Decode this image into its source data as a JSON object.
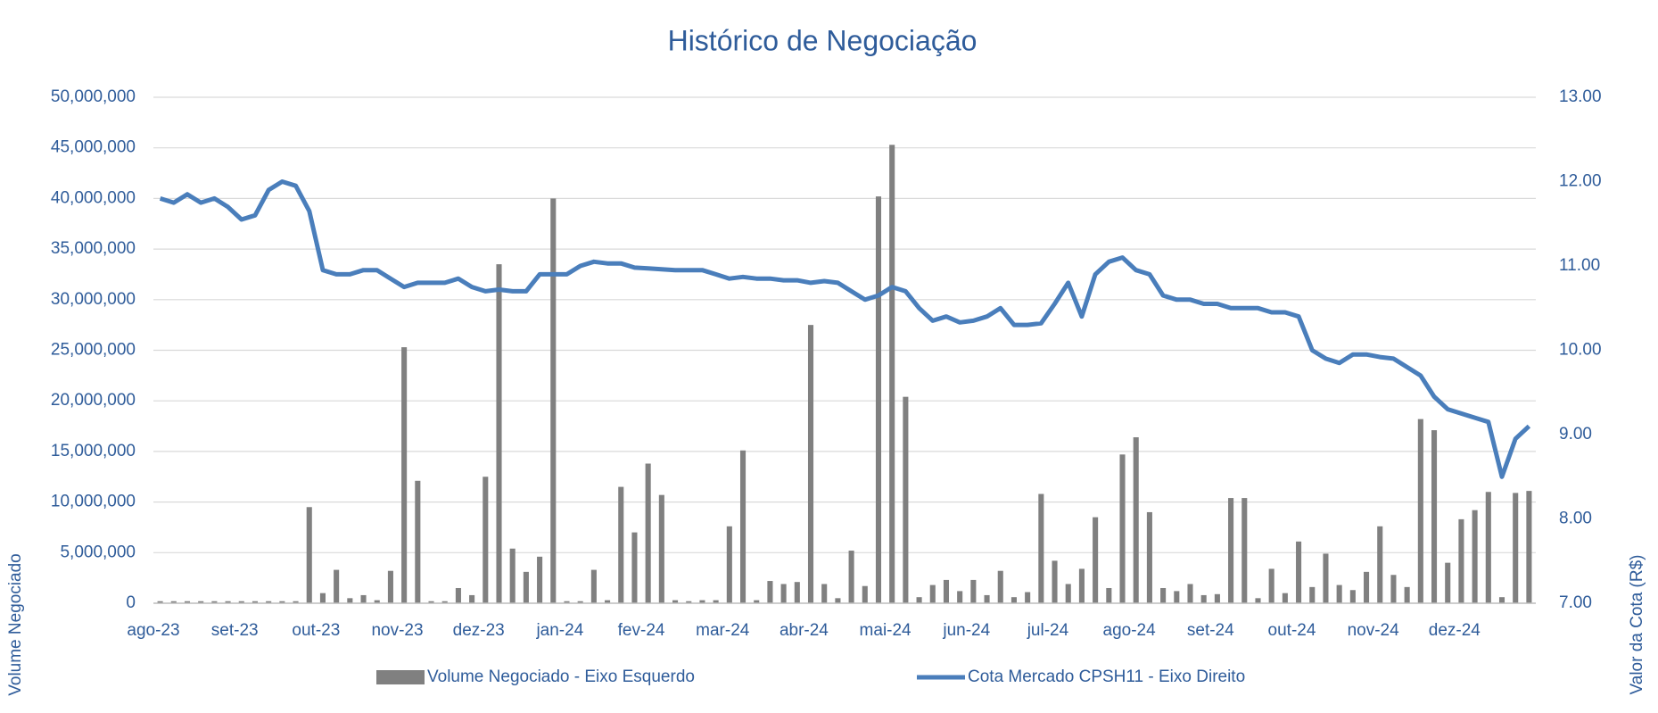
{
  "chart_data": {
    "type": "bar-line",
    "title": "Histórico de Negociação",
    "y_label": "Volume Negociado",
    "y2_label": "Valor da Cota (R$)",
    "categories": [
      "ago-23",
      null,
      null,
      null,
      null,
      null,
      "set-23",
      null,
      null,
      null,
      null,
      null,
      "out-23",
      null,
      null,
      null,
      null,
      null,
      "nov-23",
      null,
      null,
      null,
      null,
      null,
      "dez-23",
      null,
      null,
      null,
      null,
      null,
      "jan-24",
      null,
      null,
      null,
      null,
      null,
      "fev-24",
      null,
      null,
      null,
      null,
      null,
      "mar-24",
      null,
      null,
      null,
      null,
      null,
      "abr-24",
      null,
      null,
      null,
      null,
      null,
      "mai-24",
      null,
      null,
      null,
      null,
      null,
      "jun-24",
      null,
      null,
      null,
      null,
      null,
      "jul-24",
      null,
      null,
      null,
      null,
      null,
      "ago-24",
      null,
      null,
      null,
      null,
      null,
      "set-24",
      null,
      null,
      null,
      null,
      null,
      "out-24",
      null,
      null,
      null,
      null,
      null,
      "nov-24",
      null,
      null,
      null,
      null,
      null,
      "dez-24",
      null,
      null,
      null,
      null,
      null
    ],
    "series": [
      {
        "name": "Volume Negociado - Eixo Esquerdo",
        "type": "bar",
        "color": "#808080",
        "values": [
          200000,
          200000,
          200000,
          200000,
          200000,
          200000,
          200000,
          200000,
          200000,
          200000,
          200000,
          9500000,
          1000000,
          3300000,
          500000,
          800000,
          300000,
          3200000,
          25300000,
          12100000,
          200000,
          200000,
          1500000,
          800000,
          12500000,
          33500000,
          5400000,
          3100000,
          4600000,
          40000000,
          200000,
          200000,
          3300000,
          300000,
          11500000,
          7000000,
          13800000,
          10700000,
          300000,
          200000,
          300000,
          300000,
          7600000,
          15100000,
          300000,
          2200000,
          1900000,
          2100000,
          27500000,
          1900000,
          500000,
          5200000,
          1700000,
          40200000,
          45300000,
          20400000,
          600000,
          1800000,
          2300000,
          1200000,
          2300000,
          800000,
          3200000,
          600000,
          1100000,
          10800000,
          4200000,
          1900000,
          3400000,
          8500000,
          1500000,
          14700000,
          16400000,
          9000000,
          1500000,
          1200000,
          1900000,
          800000,
          900000,
          10400000,
          10400000,
          500000,
          3400000,
          1000000,
          6100000,
          1600000,
          4900000,
          1800000,
          1300000,
          3100000,
          7600000,
          2800000,
          1600000,
          18200000,
          17100000,
          4000000,
          8300000,
          9200000,
          11000000,
          600000,
          10900000,
          11100000
        ]
      },
      {
        "name": "Cota Mercado CPSH11 - Eixo Direito",
        "type": "line",
        "axis": "y2",
        "color": "#4a7ebb",
        "values": [
          11.8,
          11.75,
          11.85,
          11.75,
          11.8,
          11.7,
          11.55,
          11.6,
          11.9,
          12.0,
          11.95,
          11.65,
          10.95,
          10.9,
          10.9,
          10.95,
          10.95,
          10.85,
          10.75,
          10.8,
          10.8,
          10.8,
          10.85,
          10.75,
          10.7,
          10.72,
          10.7,
          10.7,
          10.9,
          10.9,
          10.9,
          11.0,
          11.05,
          11.03,
          11.03,
          10.98,
          10.97,
          10.96,
          10.95,
          10.95,
          10.95,
          10.9,
          10.85,
          10.87,
          10.85,
          10.85,
          10.83,
          10.83,
          10.8,
          10.82,
          10.8,
          10.7,
          10.6,
          10.65,
          10.75,
          10.7,
          10.5,
          10.35,
          10.4,
          10.33,
          10.35,
          10.4,
          10.5,
          10.3,
          10.3,
          10.32,
          10.55,
          10.8,
          10.4,
          10.9,
          11.05,
          11.1,
          10.95,
          10.9,
          10.65,
          10.6,
          10.6,
          10.55,
          10.55,
          10.5,
          10.5,
          10.5,
          10.45,
          10.45,
          10.4,
          10.0,
          9.9,
          9.85,
          9.95,
          9.95,
          9.92,
          9.9,
          9.8,
          9.7,
          9.45,
          9.3,
          9.25,
          9.2,
          9.15,
          8.5,
          8.95,
          9.1
        ]
      }
    ],
    "ylim": [
      0,
      50000000
    ],
    "yticks": [
      0,
      {
        "value": 5000000,
        "label": "5,000,000"
      },
      {
        "value": 10000000,
        "label": "10,000,000"
      },
      {
        "value": 15000000,
        "label": "15,000,000"
      },
      {
        "value": 20000000,
        "label": "20,000,000"
      },
      {
        "value": 25000000,
        "label": "25,000,000"
      },
      {
        "value": 30000000,
        "label": "30,000,000"
      },
      {
        "value": 35000000,
        "label": "35,000,000"
      },
      {
        "value": 40000000,
        "label": "40,000,000"
      },
      {
        "value": 45000000,
        "label": "45,000,000"
      },
      {
        "value": 50000000,
        "label": "50,000,000"
      }
    ],
    "y2lim": [
      7,
      13
    ],
    "y2ticks": [
      {
        "value": 7,
        "label": "7.00"
      },
      {
        "value": 8,
        "label": "8.00"
      },
      {
        "value": 9,
        "label": "9.00"
      },
      {
        "value": 10,
        "label": "10.00"
      },
      {
        "value": 11,
        "label": "11.00"
      },
      {
        "value": 12,
        "label": "12.00"
      },
      {
        "value": 13,
        "label": "13.00"
      }
    ],
    "grid": true,
    "legend": "bottom"
  }
}
